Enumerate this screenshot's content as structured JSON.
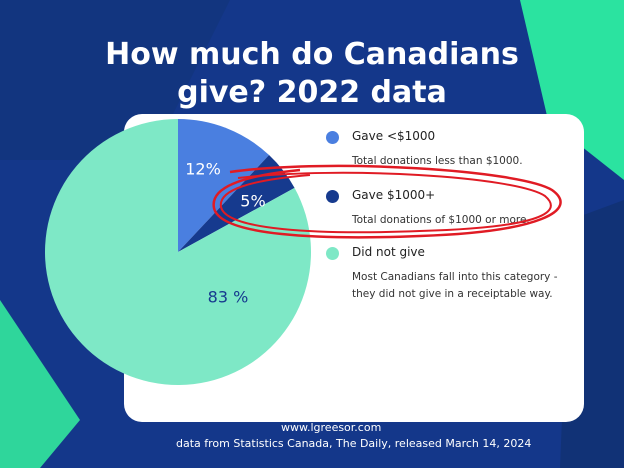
{
  "title_line1": "How much do Canadians",
  "title_line2": "give? 2022 data",
  "chart_data": {
    "type": "pie",
    "title": "How much do Canadians give? 2022 data",
    "slices": [
      {
        "label": "Gave <$1000",
        "value": 12,
        "display": "12%",
        "color": "#4a7fe0",
        "description": "Total donations less than $1000."
      },
      {
        "label": "Gave $1000+",
        "value": 5,
        "display": "5%",
        "color": "#163a8e",
        "description": "Total donations of $1000 or more."
      },
      {
        "label": "Did not give",
        "value": 83,
        "display": "83 %",
        "color": "#7ee8c6",
        "description": "Most Canadians fall into this category - they did not give in a receiptable way."
      }
    ]
  },
  "footer": {
    "url": "www.lgreesor.com",
    "source": "data from Statistics Canada, The Daily, released March 14, 2024"
  },
  "colors": {
    "background": "#14378a",
    "accent_teal": "#3fd79e",
    "highlight_red": "#e01b24"
  }
}
